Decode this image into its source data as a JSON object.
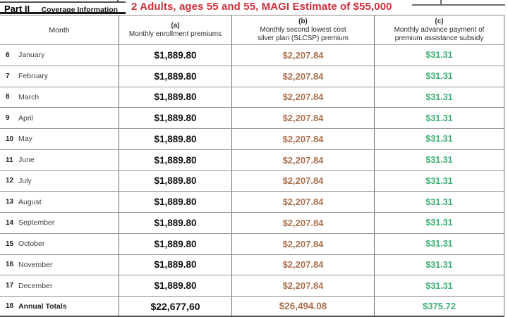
{
  "part_header": {
    "part_label": "Part II",
    "part_title": "Coverage Information",
    "annotation": "2 Adults, ages 55 and 55, MAGI Estimate of $55,000"
  },
  "table": {
    "month_header": "Month",
    "columns": [
      {
        "letter": "(a)",
        "line1": "Monthly enrollment premiums",
        "line2": ""
      },
      {
        "letter": "(b)",
        "line1": "Monthly second lowest cost",
        "line2": "silver plan (SLCSP) premium"
      },
      {
        "letter": "(c)",
        "line1": "Monthly advance payment of",
        "line2": "premium assistance subsidy"
      }
    ],
    "rows": [
      {
        "num": "6",
        "month": "January",
        "a": "$1,889.80",
        "b": "$2,207.84",
        "c": "$31.31",
        "is_total": false
      },
      {
        "num": "7",
        "month": "February",
        "a": "$1,889.80",
        "b": "$2,207.84",
        "c": "$31.31",
        "is_total": false
      },
      {
        "num": "8",
        "month": "March",
        "a": "$1,889.80",
        "b": "$2,207.84",
        "c": "$31.31",
        "is_total": false
      },
      {
        "num": "9",
        "month": "April",
        "a": "$1,889.80",
        "b": "$2,207.84",
        "c": "$31.31",
        "is_total": false
      },
      {
        "num": "10",
        "month": "May",
        "a": "$1,889.80",
        "b": "$2,207.84",
        "c": "$31.31",
        "is_total": false
      },
      {
        "num": "11",
        "month": "June",
        "a": "$1,889.80",
        "b": "$2,207.84",
        "c": "$31.31",
        "is_total": false
      },
      {
        "num": "12",
        "month": "July",
        "a": "$1,889.80",
        "b": "$2,207.84",
        "c": "$31.31",
        "is_total": false
      },
      {
        "num": "13",
        "month": "August",
        "a": "$1,889.80",
        "b": "$2,207.84",
        "c": "$31.31",
        "is_total": false
      },
      {
        "num": "14",
        "month": "September",
        "a": "$1,889.80",
        "b": "$2,207.84",
        "c": "$31.31",
        "is_total": false
      },
      {
        "num": "15",
        "month": "October",
        "a": "$1,889.80",
        "b": "$2,207.84",
        "c": "$31.31",
        "is_total": false
      },
      {
        "num": "16",
        "month": "November",
        "a": "$1,889.80",
        "b": "$2,207.84",
        "c": "$31.31",
        "is_total": false
      },
      {
        "num": "17",
        "month": "December",
        "a": "$1,889.80",
        "b": "$2,207.84",
        "c": "$31.31",
        "is_total": false
      },
      {
        "num": "18",
        "month": "Annual Totals",
        "a": "$22,677,60",
        "b": "$26,494.08",
        "c": "$375.72",
        "is_total": true
      }
    ]
  },
  "colors": {
    "annotation_red": "#d02f3a",
    "slcsp_brown": "#a9714e",
    "subsidy_green": "#3db074"
  }
}
